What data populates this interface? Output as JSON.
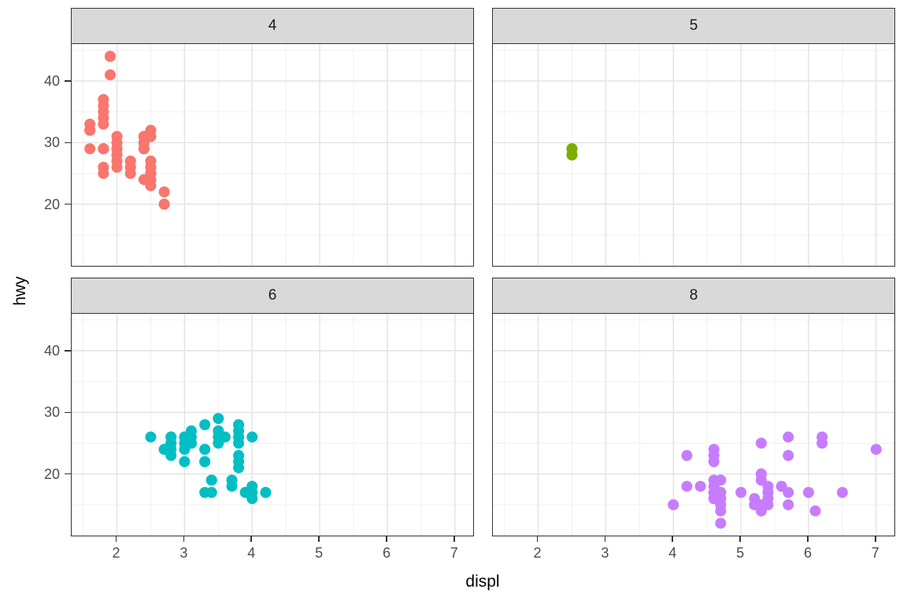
{
  "chart_data": {
    "type": "scatter",
    "title": "",
    "xlabel": "displ",
    "ylabel": "hwy",
    "facet_variable": "cyl",
    "legend": "none",
    "grid": true,
    "x_ticks": [
      2,
      3,
      4,
      5,
      6,
      7
    ],
    "x_minor_ticks": [
      1.5,
      2.5,
      3.5,
      4.5,
      5.5,
      6.5
    ],
    "y_ticks": [
      20,
      30,
      40
    ],
    "y_minor_ticks": [
      15,
      25,
      35,
      45
    ],
    "x_range": [
      1.33,
      7.27
    ],
    "y_range": [
      10.0,
      46.0
    ],
    "style": {
      "panel_background": "#FFFFFF",
      "strip_fill": "#D9D9D9",
      "border_color": "#333333",
      "grid_major_color": "#E4E4E4",
      "grid_minor_color": "#F0F0F0",
      "tick_color": "#333333",
      "tick_label_color": "#4D4D4D",
      "point_radius_px": 7
    },
    "facets": [
      {
        "label": "4",
        "color": "#F8766D",
        "points": [
          [
            1.6,
            29
          ],
          [
            1.6,
            32
          ],
          [
            1.6,
            32
          ],
          [
            1.6,
            32
          ],
          [
            1.6,
            33
          ],
          [
            1.8,
            25
          ],
          [
            1.8,
            26
          ],
          [
            1.8,
            29
          ],
          [
            1.8,
            29
          ],
          [
            1.8,
            29
          ],
          [
            1.8,
            29
          ],
          [
            1.8,
            33
          ],
          [
            1.8,
            34
          ],
          [
            1.8,
            35
          ],
          [
            1.8,
            36
          ],
          [
            1.8,
            37
          ],
          [
            1.9,
            41
          ],
          [
            1.9,
            44
          ],
          [
            1.9,
            44
          ],
          [
            2.0,
            26
          ],
          [
            2.0,
            27
          ],
          [
            2.0,
            27
          ],
          [
            2.0,
            28
          ],
          [
            2.0,
            28
          ],
          [
            2.0,
            29
          ],
          [
            2.0,
            29
          ],
          [
            2.0,
            29
          ],
          [
            2.0,
            29
          ],
          [
            2.0,
            30
          ],
          [
            2.0,
            31
          ],
          [
            2.2,
            25
          ],
          [
            2.2,
            26
          ],
          [
            2.2,
            26
          ],
          [
            2.2,
            27
          ],
          [
            2.2,
            27
          ],
          [
            2.4,
            24
          ],
          [
            2.4,
            29
          ],
          [
            2.4,
            29
          ],
          [
            2.4,
            30
          ],
          [
            2.4,
            30
          ],
          [
            2.4,
            31
          ],
          [
            2.4,
            31
          ],
          [
            2.4,
            31
          ],
          [
            2.5,
            23
          ],
          [
            2.5,
            24
          ],
          [
            2.5,
            24
          ],
          [
            2.5,
            25
          ],
          [
            2.5,
            25
          ],
          [
            2.5,
            25
          ],
          [
            2.5,
            26
          ],
          [
            2.5,
            26
          ],
          [
            2.5,
            27
          ],
          [
            2.5,
            27
          ],
          [
            2.5,
            31
          ],
          [
            2.5,
            32
          ],
          [
            2.7,
            20
          ],
          [
            2.7,
            20
          ],
          [
            2.7,
            22
          ]
        ]
      },
      {
        "label": "5",
        "color": "#7CAE00",
        "points": [
          [
            2.5,
            28
          ],
          [
            2.5,
            28
          ],
          [
            2.5,
            29
          ],
          [
            2.5,
            29
          ]
        ]
      },
      {
        "label": "6",
        "color": "#00BFC4",
        "points": [
          [
            2.5,
            26
          ],
          [
            2.7,
            24
          ],
          [
            2.7,
            24
          ],
          [
            2.8,
            23
          ],
          [
            2.8,
            24
          ],
          [
            2.8,
            25
          ],
          [
            2.8,
            25
          ],
          [
            2.8,
            26
          ],
          [
            2.8,
            26
          ],
          [
            3.0,
            22
          ],
          [
            3.0,
            24
          ],
          [
            3.0,
            25
          ],
          [
            3.0,
            26
          ],
          [
            3.0,
            26
          ],
          [
            3.1,
            25
          ],
          [
            3.1,
            25
          ],
          [
            3.1,
            25
          ],
          [
            3.1,
            26
          ],
          [
            3.1,
            27
          ],
          [
            3.3,
            17
          ],
          [
            3.3,
            22
          ],
          [
            3.3,
            22
          ],
          [
            3.3,
            24
          ],
          [
            3.3,
            24
          ],
          [
            3.3,
            28
          ],
          [
            3.4,
            17
          ],
          [
            3.4,
            19
          ],
          [
            3.4,
            19
          ],
          [
            3.5,
            25
          ],
          [
            3.5,
            26
          ],
          [
            3.5,
            27
          ],
          [
            3.5,
            29
          ],
          [
            3.6,
            26
          ],
          [
            3.7,
            18
          ],
          [
            3.7,
            19
          ],
          [
            3.8,
            21
          ],
          [
            3.8,
            22
          ],
          [
            3.8,
            23
          ],
          [
            3.8,
            25
          ],
          [
            3.8,
            26
          ],
          [
            3.8,
            26
          ],
          [
            3.8,
            27
          ],
          [
            3.8,
            28
          ],
          [
            3.9,
            17
          ],
          [
            3.9,
            17
          ],
          [
            4.0,
            16
          ],
          [
            4.0,
            17
          ],
          [
            4.0,
            17
          ],
          [
            4.0,
            18
          ],
          [
            4.0,
            26
          ],
          [
            4.2,
            17
          ],
          [
            4.2,
            17
          ]
        ]
      },
      {
        "label": "8",
        "color": "#C77CFF",
        "points": [
          [
            4.0,
            15
          ],
          [
            4.2,
            18
          ],
          [
            4.2,
            23
          ],
          [
            4.4,
            18
          ],
          [
            4.6,
            16
          ],
          [
            4.6,
            16
          ],
          [
            4.6,
            17
          ],
          [
            4.6,
            17
          ],
          [
            4.6,
            18
          ],
          [
            4.6,
            19
          ],
          [
            4.6,
            22
          ],
          [
            4.6,
            23
          ],
          [
            4.6,
            24
          ],
          [
            4.7,
            12
          ],
          [
            4.7,
            14
          ],
          [
            4.7,
            15
          ],
          [
            4.7,
            16
          ],
          [
            4.7,
            16
          ],
          [
            4.7,
            17
          ],
          [
            4.7,
            17
          ],
          [
            4.7,
            19
          ],
          [
            5.0,
            17
          ],
          [
            5.2,
            15
          ],
          [
            5.2,
            16
          ],
          [
            5.3,
            14
          ],
          [
            5.3,
            15
          ],
          [
            5.3,
            19
          ],
          [
            5.3,
            20
          ],
          [
            5.3,
            20
          ],
          [
            5.3,
            25
          ],
          [
            5.4,
            15
          ],
          [
            5.4,
            16
          ],
          [
            5.4,
            17
          ],
          [
            5.4,
            17
          ],
          [
            5.4,
            18
          ],
          [
            5.6,
            18
          ],
          [
            5.7,
            15
          ],
          [
            5.7,
            17
          ],
          [
            5.7,
            23
          ],
          [
            5.7,
            26
          ],
          [
            6.0,
            17
          ],
          [
            6.1,
            14
          ],
          [
            6.2,
            25
          ],
          [
            6.2,
            26
          ],
          [
            6.5,
            17
          ],
          [
            7.0,
            24
          ]
        ]
      }
    ]
  }
}
